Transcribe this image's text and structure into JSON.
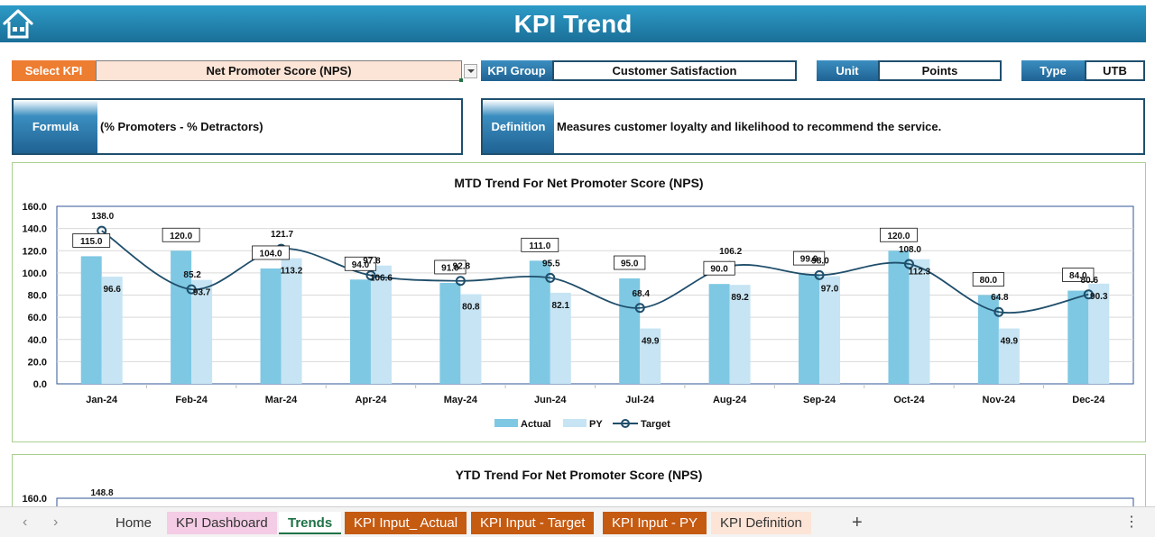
{
  "header": {
    "title": "KPI Trend"
  },
  "filters": {
    "select_kpi_label": "Select KPI",
    "select_kpi_value": "Net Promoter Score (NPS)",
    "kpi_group_label": "KPI Group",
    "kpi_group_value": "Customer Satisfaction",
    "unit_label": "Unit",
    "unit_value": "Points",
    "type_label": "Type",
    "type_value": "UTB"
  },
  "formula": {
    "label": "Formula",
    "text": "(% Promoters - % Detractors)"
  },
  "definition": {
    "label": "Definition",
    "text": "Measures customer loyalty and likelihood to recommend the service."
  },
  "chart_data": [
    {
      "type": "bar",
      "title": "MTD Trend For Net Promoter Score (NPS)",
      "categories": [
        "Jan-24",
        "Feb-24",
        "Mar-24",
        "Apr-24",
        "May-24",
        "Jun-24",
        "Jul-24",
        "Aug-24",
        "Sep-24",
        "Oct-24",
        "Nov-24",
        "Dec-24"
      ],
      "series": [
        {
          "name": "Actual",
          "kind": "bar",
          "color": "#7ec8e3",
          "values": [
            115.0,
            120.0,
            104.0,
            94.0,
            91.0,
            111.0,
            95.0,
            90.0,
            99.0,
            120.0,
            80.0,
            84.0
          ]
        },
        {
          "name": "PY",
          "kind": "bar",
          "color": "#c6e4f3",
          "values": [
            96.6,
            93.7,
            113.2,
            106.6,
            80.8,
            82.1,
            49.9,
            89.2,
            97.0,
            112.3,
            49.9,
            90.3
          ]
        },
        {
          "name": "Target",
          "kind": "line",
          "color": "#1f4e6b",
          "values": [
            138.0,
            85.2,
            121.7,
            97.8,
            92.8,
            95.5,
            68.4,
            106.2,
            98.0,
            108.0,
            64.8,
            80.6
          ]
        }
      ],
      "y_tick_labels": [
        "0.0",
        "20.0",
        "40.0",
        "60.0",
        "80.0",
        "100.0",
        "120.0",
        "140.0",
        "160.0"
      ],
      "ylim": [
        0,
        160
      ],
      "grid": true,
      "legend": "bottom"
    },
    {
      "type": "line",
      "title": "YTD Trend For Net Promoter Score (NPS)",
      "y_tick_labels": [
        "160.0"
      ],
      "visible_data_labels": [
        "148.8"
      ],
      "ylim": [
        0,
        160
      ]
    }
  ],
  "sheet_tabs": {
    "prev_icon": "‹",
    "next_icon": "›",
    "home": "Home",
    "dashboard": "KPI Dashboard",
    "trends": "Trends",
    "input_actual": "KPI Input_ Actual",
    "input_target": "KPI Input - Target",
    "input_py": "KPI Input - PY",
    "definition": "KPI Definition",
    "add": "+",
    "menu": "⋮"
  },
  "colors": {
    "header_blue": "#2d9bc7",
    "select_orange": "#ed7d31",
    "label_blue": "#1f6293",
    "actual_bar": "#7ec8e3",
    "py_bar": "#c6e4f3",
    "target_line": "#1f4e6b"
  }
}
